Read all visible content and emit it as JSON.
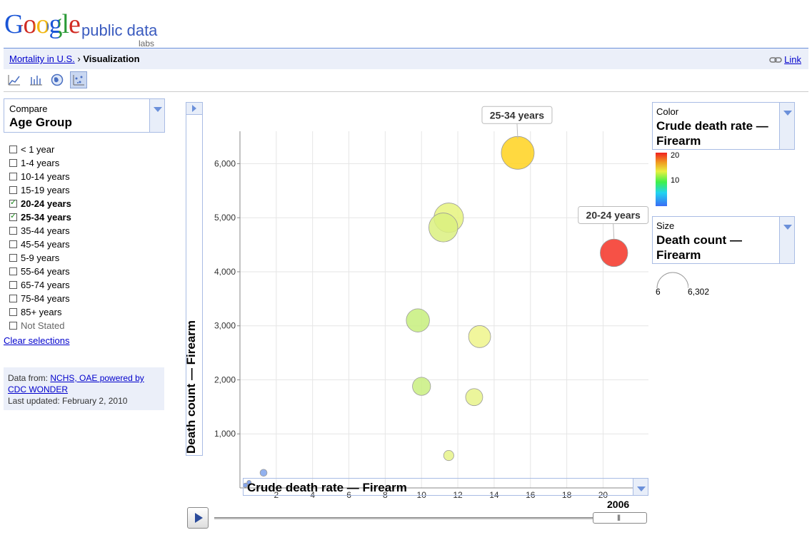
{
  "header": {
    "logo_google": "Google",
    "logo_public_data": "public data",
    "logo_labs": "labs"
  },
  "breadcrumb": {
    "dataset": "Mortality in U.S.",
    "separator": "›",
    "current": "Visualization",
    "link_label": "Link"
  },
  "toolbar": {
    "icons": [
      "line-chart-icon",
      "bar-chart-icon",
      "map-icon",
      "bubble-chart-icon"
    ],
    "selected": "bubble-chart-icon"
  },
  "compare": {
    "label": "Compare",
    "value": "Age Group"
  },
  "age_groups": [
    {
      "label": "< 1 year",
      "checked": false
    },
    {
      "label": "1-4 years",
      "checked": false
    },
    {
      "label": "10-14 years",
      "checked": false
    },
    {
      "label": "15-19 years",
      "checked": false
    },
    {
      "label": "20-24 years",
      "checked": true
    },
    {
      "label": "25-34 years",
      "checked": true
    },
    {
      "label": "35-44 years",
      "checked": false
    },
    {
      "label": "45-54 years",
      "checked": false
    },
    {
      "label": "5-9 years",
      "checked": false
    },
    {
      "label": "55-64 years",
      "checked": false
    },
    {
      "label": "65-74 years",
      "checked": false
    },
    {
      "label": "75-84 years",
      "checked": false
    },
    {
      "label": "85+ years",
      "checked": false
    },
    {
      "label": "Not Stated",
      "checked": false
    }
  ],
  "clear_selections": "Clear selections",
  "source": {
    "prefix": "Data from: ",
    "link": "NCHS, OAE powered by CDC WONDER",
    "updated": "Last updated: February 2, 2010"
  },
  "color_control": {
    "label": "Color",
    "value": "Crude death rate — Firearm",
    "scale_ticks": [
      "20",
      "10"
    ]
  },
  "size_control": {
    "label": "Size",
    "value": "Death count — Firearm",
    "min": "6",
    "max": "6,302"
  },
  "year": "2006",
  "colors": {
    "grid": "#e6e6e6",
    "link": "#0000cc",
    "panel_bg": "#ebeff9",
    "border": "#a9bce4"
  },
  "chart_data": {
    "type": "scatter",
    "xlabel": "Crude death rate — Firearm",
    "ylabel": "Death count — Firearm",
    "xlim": [
      0,
      22.5
    ],
    "ylim": [
      0,
      6600
    ],
    "xticks": [
      "2",
      "4",
      "6",
      "8",
      "10",
      "12",
      "14",
      "16",
      "18",
      "20"
    ],
    "yticks": [
      "1,000",
      "2,000",
      "3,000",
      "4,000",
      "5,000",
      "6,000"
    ],
    "grid": true,
    "points": [
      {
        "x": 15.3,
        "y": 6200,
        "size": 6200,
        "color": "#ffd21f",
        "label": "25-34 years"
      },
      {
        "x": 20.6,
        "y": 4350,
        "size": 4350,
        "color": "#f53326",
        "label": "20-24 years"
      },
      {
        "x": 11.5,
        "y": 5000,
        "size": 5000,
        "color": "#e6f37e"
      },
      {
        "x": 11.2,
        "y": 4820,
        "size": 4820,
        "color": "#daf07f"
      },
      {
        "x": 9.8,
        "y": 3100,
        "size": 3100,
        "color": "#c7ee7c"
      },
      {
        "x": 13.2,
        "y": 2800,
        "size": 2800,
        "color": "#eef58b"
      },
      {
        "x": 10.0,
        "y": 1880,
        "size": 1880,
        "color": "#c9ef80"
      },
      {
        "x": 12.9,
        "y": 1680,
        "size": 1680,
        "color": "#e8f38a"
      },
      {
        "x": 11.5,
        "y": 600,
        "size": 600,
        "color": "#e6f38a"
      },
      {
        "x": 1.3,
        "y": 280,
        "size": 280,
        "color": "#7ea3ec"
      },
      {
        "x": 0.5,
        "y": 100,
        "size": 100,
        "color": "#6f95ea"
      },
      {
        "x": 0.3,
        "y": 50,
        "size": 50,
        "color": "#6f95ea"
      }
    ]
  }
}
